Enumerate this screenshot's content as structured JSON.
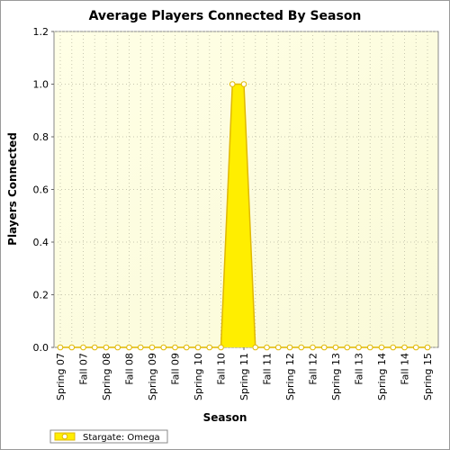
{
  "chart_data": {
    "type": "area",
    "title": "Average Players Connected By Season",
    "x_label": "Season",
    "y_label": "Players Connected",
    "categories": [
      "Spring 07",
      null,
      "Fall 07",
      null,
      "Spring 08",
      null,
      "Fall 08",
      null,
      "Spring 09",
      null,
      "Fall 09",
      null,
      "Spring 10",
      null,
      "Fall 10",
      null,
      "Spring 11",
      null,
      "Fall 11",
      null,
      "Spring 12",
      null,
      "Fall 12",
      null,
      "Spring 13",
      null,
      "Fall 13",
      null,
      "Spring 14",
      null,
      "Fall 14",
      null,
      "Spring 15"
    ],
    "series": [
      {
        "name": "Stargate: Omega",
        "color": "#ffee00",
        "values": [
          0,
          0,
          0,
          0,
          0,
          0,
          0,
          0,
          0,
          0,
          0,
          0,
          0,
          0,
          0,
          1,
          1,
          0,
          0,
          0,
          0,
          0,
          0,
          0,
          0,
          0,
          0,
          0,
          0,
          0,
          0,
          0,
          0
        ]
      }
    ],
    "ylim": [
      0,
      1.2
    ],
    "yticks": [
      {
        "value": 0,
        "label": "0.0"
      },
      0.2,
      0.4,
      0.6,
      0.8,
      {
        "value": 1,
        "label": "1.0"
      },
      1.2
    ],
    "grid": true,
    "legend": "bottom-left"
  }
}
